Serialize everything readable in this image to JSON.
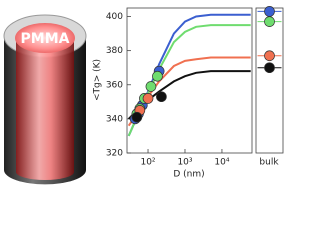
{
  "illustration": {
    "label": "PMMA"
  },
  "chart_data": {
    "type": "scatter",
    "x_label": "D (nm)",
    "y_label": "<Tg> (K)",
    "bulk_label": "bulk",
    "xscale": "log",
    "xlim": [
      27,
      65000
    ],
    "ylim": [
      320,
      405
    ],
    "xticks": [
      {
        "value": 100,
        "label": "10²"
      },
      {
        "value": 1000,
        "label": "10³"
      },
      {
        "value": 10000,
        "label": "10⁴"
      }
    ],
    "yticks": [
      320,
      340,
      360,
      380,
      400
    ],
    "series": [
      {
        "color": "#3b5fd0",
        "x": [
          45,
          55,
          70,
          200
        ],
        "values": [
          340,
          343,
          348,
          368
        ],
        "bulk": 403,
        "fit": {
          "x": [
            30,
            50,
            100,
            200,
            500,
            1000,
            2000,
            5000,
            10000,
            60000
          ],
          "values": [
            330,
            341,
            356,
            372,
            390,
            397,
            400,
            401,
            401,
            401
          ]
        }
      },
      {
        "color": "#6fdc6f",
        "x": [
          50,
          60,
          80,
          120,
          180
        ],
        "values": [
          343,
          346,
          352,
          359,
          365
        ],
        "bulk": 397,
        "fit": {
          "x": [
            30,
            50,
            100,
            200,
            500,
            1000,
            2000,
            5000,
            10000,
            60000
          ],
          "values": [
            330,
            341,
            355,
            369,
            385,
            391,
            394,
            395,
            395,
            395
          ]
        }
      },
      {
        "color": "#f07050",
        "x": [
          60,
          100
        ],
        "values": [
          345,
          352
        ],
        "bulk": 377,
        "fit": {
          "x": [
            30,
            50,
            100,
            200,
            500,
            1000,
            2000,
            5000,
            10000,
            60000
          ],
          "values": [
            336,
            343,
            353,
            362,
            371,
            374,
            375,
            376,
            376,
            376
          ]
        }
      },
      {
        "color": "#111111",
        "x": [
          50,
          230
        ],
        "values": [
          341,
          353
        ],
        "bulk": 370,
        "fit": {
          "x": [
            30,
            50,
            100,
            200,
            500,
            1000,
            2000,
            5000,
            10000,
            60000
          ],
          "values": [
            340,
            345,
            351,
            356,
            362,
            365,
            367,
            368,
            368,
            368
          ]
        }
      }
    ]
  }
}
